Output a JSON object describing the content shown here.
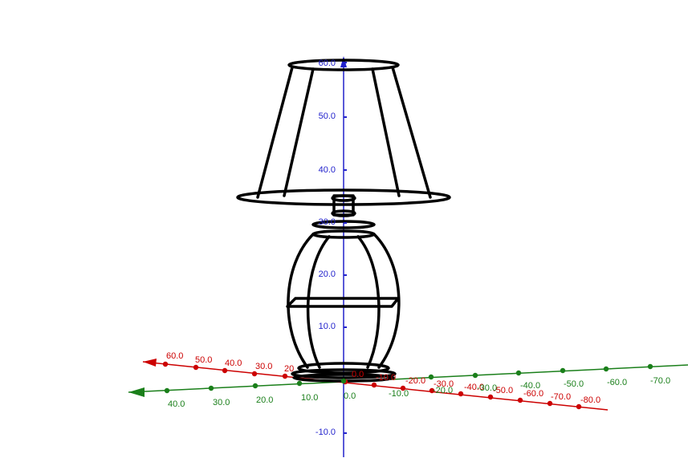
{
  "colors": {
    "x_axis": "#cc0000",
    "y_axis": "#1a7f1a",
    "z_axis": "#2222cc",
    "model": "#000000"
  },
  "axes": {
    "x": {
      "color_key": "x_axis",
      "labels": [
        "60.0",
        "50.0",
        "40.0",
        "30.0",
        "20",
        "0.0",
        "-10.0",
        "-20.0",
        "-30.0",
        "-40.0",
        "-50.0",
        "-60.0",
        "-70.0",
        "-80.0"
      ]
    },
    "y": {
      "color_key": "y_axis",
      "labels": [
        "40.0",
        "30.0",
        "20.0",
        "10.0",
        "0.0",
        "-10.0",
        "-20.0",
        "-30.0",
        "-40.0",
        "-50.0",
        "-60.0",
        "-70.0"
      ]
    },
    "z": {
      "color_key": "z_axis",
      "labels": [
        "60.0",
        "50.0",
        "40.0",
        "30.0",
        "20.0",
        "10.0",
        "-10.0"
      ]
    }
  },
  "model": {
    "name_icon": "table-lamp-wireframe"
  }
}
